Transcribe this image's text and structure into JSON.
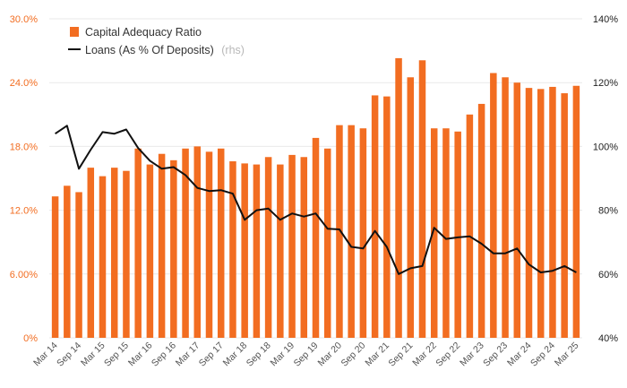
{
  "chart_data": {
    "type": "bar",
    "categories": [
      "Mar 14",
      "Jun 14",
      "Sep 14",
      "Dec 14",
      "Mar 15",
      "Jun 15",
      "Sep 15",
      "Dec 15",
      "Mar 16",
      "Jun 16",
      "Sep 16",
      "Dec 16",
      "Mar 17",
      "Jun 17",
      "Sep 17",
      "Dec 17",
      "Mar 18",
      "Jun 18",
      "Sep 18",
      "Dec 18",
      "Mar 19",
      "Jun 19",
      "Sep 19",
      "Dec 19",
      "Mar 20",
      "Jun 20",
      "Sep 20",
      "Dec 20",
      "Mar 21",
      "Jun 21",
      "Sep 21",
      "Dec 21",
      "Mar 22",
      "Jun 22",
      "Sep 22",
      "Dec 22",
      "Mar 23",
      "Jun 23",
      "Sep 23",
      "Dec 23",
      "Mar 24",
      "Jun 24",
      "Sep 24",
      "Dec 24",
      "Mar 25"
    ],
    "x_tick_labels": [
      "Mar 14",
      "Sep 14",
      "Mar 15",
      "Sep 15",
      "Mar 16",
      "Sep 16",
      "Mar 17",
      "Sep 17",
      "Mar 18",
      "Sep 18",
      "Mar 19",
      "Sep 19",
      "Mar 20",
      "Sep 20",
      "Mar 21",
      "Sep 21",
      "Mar 22",
      "Sep 22",
      "Mar 23",
      "Sep 23",
      "Mar 24",
      "Sep 24",
      "Mar 25"
    ],
    "series": [
      {
        "name": "Capital Adequacy Ratio",
        "type": "bar",
        "axis": "left",
        "color": "#f26d21",
        "values": [
          13.3,
          14.3,
          13.7,
          16.0,
          15.2,
          16.0,
          15.7,
          17.8,
          16.3,
          17.3,
          16.7,
          17.8,
          18.0,
          17.5,
          17.8,
          16.6,
          16.4,
          16.3,
          17.0,
          16.3,
          17.2,
          17.0,
          18.8,
          17.8,
          20.0,
          20.0,
          19.7,
          22.8,
          22.7,
          26.3,
          24.5,
          26.1,
          19.7,
          19.7,
          19.4,
          21.0,
          22.0,
          24.9,
          24.5,
          24.0,
          23.5,
          23.4,
          23.6,
          23.0,
          23.7
        ]
      },
      {
        "name": "Loans (As % Of Deposits)",
        "name_note": "(rhs)",
        "type": "line",
        "axis": "right",
        "color": "#111111",
        "values": [
          104,
          106.5,
          93,
          99,
          104.5,
          104,
          105.3,
          99.5,
          95.5,
          93,
          93.5,
          91,
          87,
          86,
          86.3,
          85.2,
          77,
          80,
          80.5,
          77,
          79,
          78,
          79,
          74.2,
          74,
          68.5,
          68,
          73.5,
          68.5,
          60,
          61.8,
          62.5,
          74.5,
          71,
          71.5,
          71.8,
          69.5,
          66.5,
          66.5,
          68,
          63,
          60.5,
          61,
          62.5,
          60.5
        ]
      }
    ],
    "y_left": {
      "ylim": [
        0,
        30
      ],
      "ticks": [
        0,
        6,
        12,
        18,
        24,
        30
      ],
      "tick_labels": [
        "0%",
        "6.00%",
        "12.0%",
        "18.0%",
        "24.0%",
        "30.0%"
      ],
      "color": "#f26d21"
    },
    "y_right": {
      "ylim": [
        40,
        140
      ],
      "ticks": [
        40,
        60,
        80,
        100,
        120,
        140
      ],
      "tick_labels": [
        "40%",
        "60%",
        "80%",
        "100%",
        "120%",
        "140%"
      ],
      "color": "#222222"
    },
    "grid": true,
    "legend_position": "top-left",
    "title": "",
    "xlabel": "",
    "ylabel": ""
  }
}
